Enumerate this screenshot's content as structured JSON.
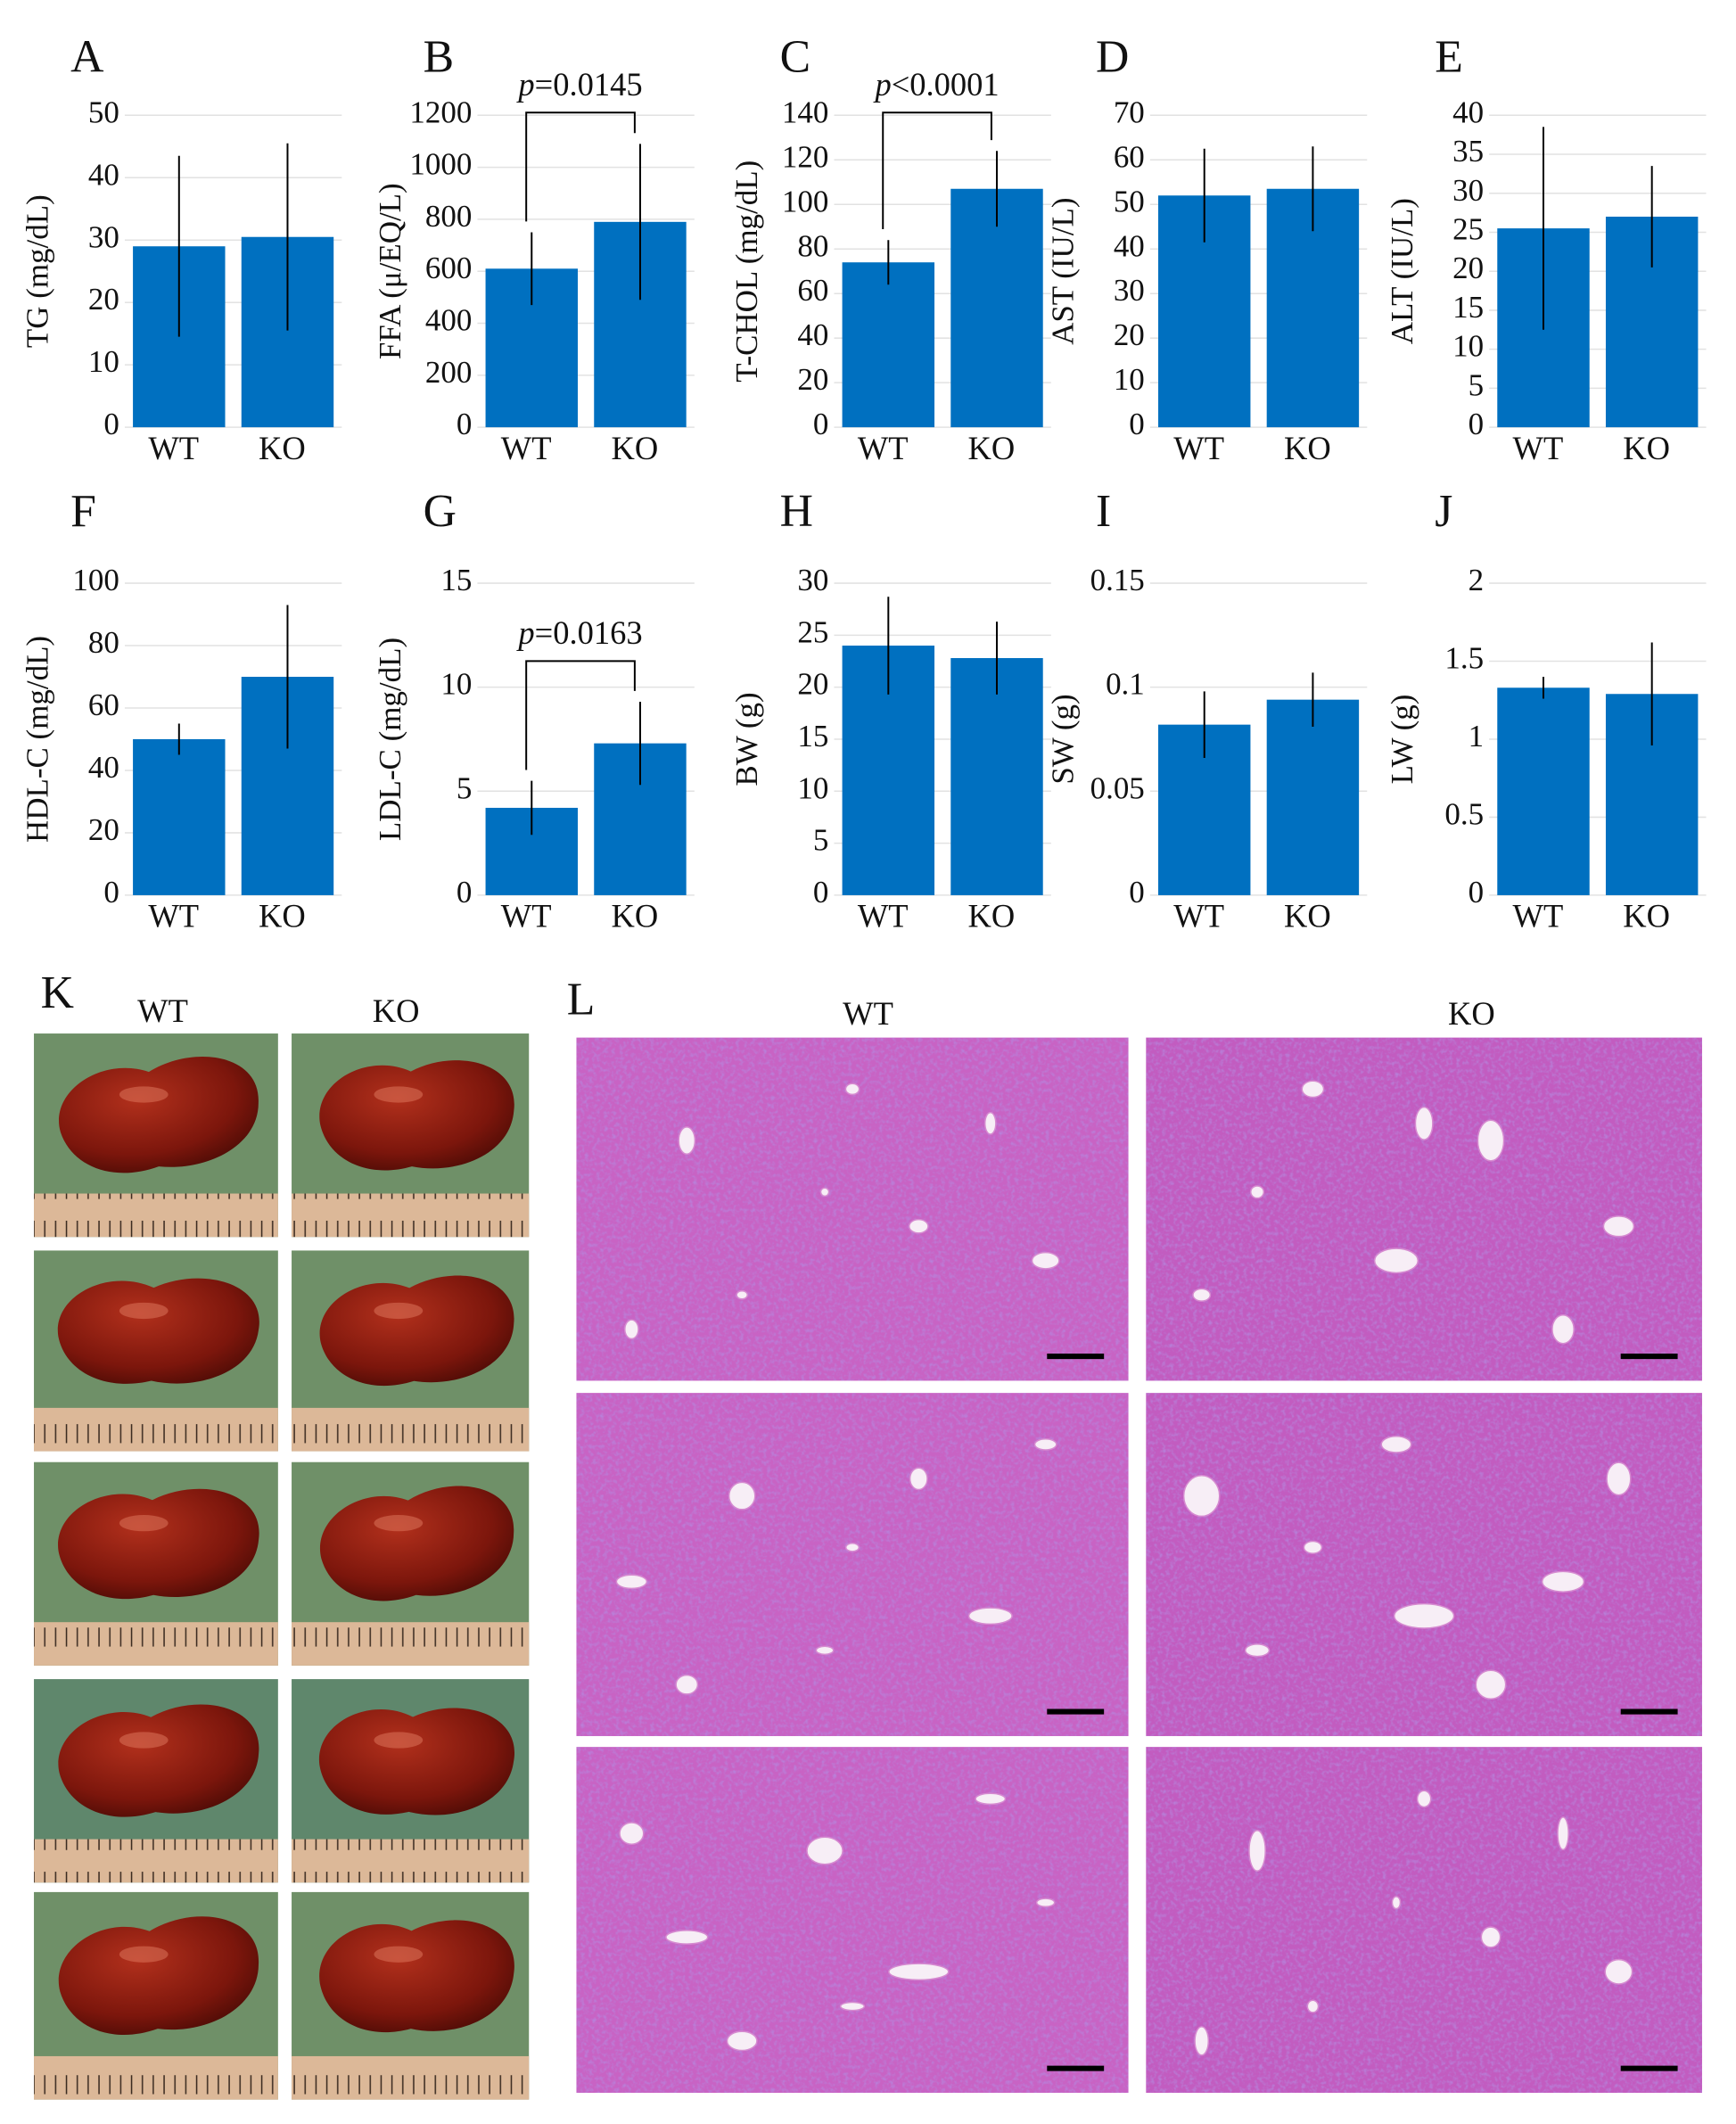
{
  "chart_data": [
    {
      "type": "bar",
      "panel": "A",
      "ylabel": "TG (mg/dL)",
      "categories": [
        "WT",
        "KO"
      ],
      "values": [
        29,
        30.5
      ],
      "errors": [
        14.5,
        15
      ],
      "color": "#0070c0",
      "ylim": [
        0,
        50
      ],
      "yticks": [
        0,
        10,
        20,
        30,
        40,
        50
      ],
      "grid": true
    },
    {
      "type": "bar",
      "panel": "B",
      "ylabel": "FFA (μ/EQ/L)",
      "categories": [
        "WT",
        "KO"
      ],
      "values": [
        610,
        790
      ],
      "errors": [
        140,
        300
      ],
      "color": "#0070c0",
      "ylim": [
        0,
        1200
      ],
      "yticks": [
        0,
        200,
        400,
        600,
        800,
        1000,
        1200
      ],
      "grid": true,
      "annotation": "p=0.0145"
    },
    {
      "type": "bar",
      "panel": "C",
      "ylabel": "T-CHOL (mg/dL)",
      "categories": [
        "WT",
        "KO"
      ],
      "values": [
        74,
        107
      ],
      "errors": [
        10,
        17
      ],
      "color": "#0070c0",
      "ylim": [
        0,
        140
      ],
      "yticks": [
        0,
        20,
        40,
        60,
        80,
        100,
        120,
        140
      ],
      "grid": true,
      "annotation": "p<0.0001"
    },
    {
      "type": "bar",
      "panel": "D",
      "ylabel": "AST (IU/L)",
      "categories": [
        "WT",
        "KO"
      ],
      "values": [
        52,
        53.5
      ],
      "errors": [
        10.5,
        9.5
      ],
      "color": "#0070c0",
      "ylim": [
        0,
        70
      ],
      "yticks": [
        0,
        10,
        20,
        30,
        40,
        50,
        60,
        70
      ],
      "grid": true
    },
    {
      "type": "bar",
      "panel": "E",
      "ylabel": "ALT (IU/L)",
      "categories": [
        "WT",
        "KO"
      ],
      "values": [
        25.5,
        27
      ],
      "errors": [
        13,
        6.5
      ],
      "color": "#0070c0",
      "ylim": [
        0,
        40
      ],
      "yticks": [
        0,
        5,
        10,
        15,
        20,
        25,
        30,
        35,
        40
      ],
      "grid": true
    },
    {
      "type": "bar",
      "panel": "F",
      "ylabel": "HDL-C (mg/dL)",
      "categories": [
        "WT",
        "KO"
      ],
      "values": [
        50,
        70
      ],
      "errors": [
        5,
        23
      ],
      "color": "#0070c0",
      "ylim": [
        0,
        100
      ],
      "yticks": [
        0,
        20,
        40,
        60,
        80,
        100
      ],
      "grid": true
    },
    {
      "type": "bar",
      "panel": "G",
      "ylabel": "LDL-C (mg/dL)",
      "categories": [
        "WT",
        "KO"
      ],
      "values": [
        4.2,
        7.3
      ],
      "errors": [
        1.3,
        2
      ],
      "color": "#0070c0",
      "ylim": [
        0,
        15
      ],
      "yticks": [
        0,
        5,
        10,
        15
      ],
      "grid": true,
      "annotation": "p=0.0163"
    },
    {
      "type": "bar",
      "panel": "H",
      "ylabel": "BW (g)",
      "categories": [
        "WT",
        "KO"
      ],
      "values": [
        24,
        22.8
      ],
      "errors": [
        4.7,
        3.5
      ],
      "color": "#0070c0",
      "ylim": [
        0,
        30
      ],
      "yticks": [
        0,
        5,
        10,
        15,
        20,
        25,
        30
      ],
      "grid": true
    },
    {
      "type": "bar",
      "panel": "I",
      "ylabel": "SW (g)",
      "categories": [
        "WT",
        "KO"
      ],
      "values": [
        0.082,
        0.094
      ],
      "errors": [
        0.016,
        0.013
      ],
      "color": "#0070c0",
      "ylim": [
        0,
        0.15
      ],
      "yticks": [
        0,
        0.05,
        0.1,
        0.15
      ],
      "grid": true
    },
    {
      "type": "bar",
      "panel": "J",
      "ylabel": "LW (g)",
      "categories": [
        "WT",
        "KO"
      ],
      "values": [
        1.33,
        1.29
      ],
      "errors": [
        0.07,
        0.33
      ],
      "color": "#0070c0",
      "ylim": [
        0,
        2
      ],
      "yticks": [
        0,
        0.5,
        1,
        1.5,
        2
      ],
      "grid": true
    }
  ],
  "images": {
    "K": {
      "panel": "K",
      "columns": [
        "WT",
        "KO"
      ]
    },
    "L": {
      "panel": "L",
      "columns": [
        "WT",
        "KO"
      ]
    }
  }
}
